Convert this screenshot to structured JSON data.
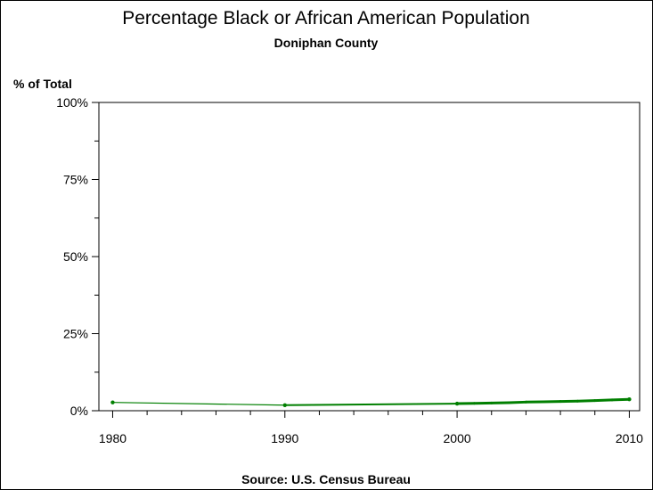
{
  "chart_data": {
    "type": "line",
    "title": "Percentage Black or African American Population",
    "subtitle": "Doniphan County",
    "ylabel": "% of Total",
    "xlabel": "",
    "source": "Source: U.S. Census Bureau",
    "x_ticks": [
      "1980",
      "1990",
      "2000",
      "2010"
    ],
    "y_ticks": [
      "0%",
      "25%",
      "50%",
      "75%",
      "100%"
    ],
    "xlim": [
      1979.2,
      2010.6
    ],
    "ylim": [
      0,
      100
    ],
    "grid": false,
    "colors": {
      "line": "#007f00",
      "axis": "#000000"
    },
    "series": [
      {
        "points": [
          {
            "x": 1980,
            "y": 2.7
          },
          {
            "x": 1990,
            "y": 1.8
          },
          {
            "x": 2000,
            "y": 2.3
          },
          {
            "x": 2001,
            "y": 2.4
          },
          {
            "x": 2002,
            "y": 2.5
          },
          {
            "x": 2003,
            "y": 2.6
          },
          {
            "x": 2004,
            "y": 2.8
          },
          {
            "x": 2005,
            "y": 2.9
          },
          {
            "x": 2006,
            "y": 3.0
          },
          {
            "x": 2007,
            "y": 3.1
          },
          {
            "x": 2008,
            "y": 3.3
          },
          {
            "x": 2009,
            "y": 3.5
          },
          {
            "x": 2010,
            "y": 3.7
          }
        ]
      }
    ]
  }
}
